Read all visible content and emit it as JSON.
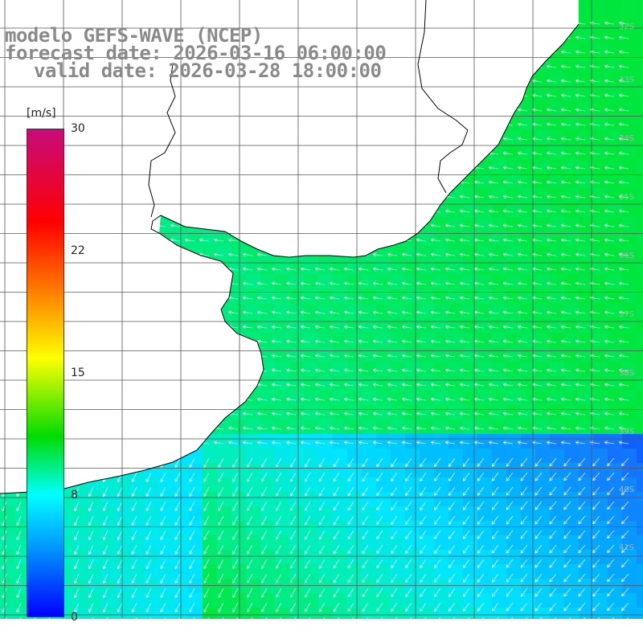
{
  "title": {
    "line1": "modelo GEFS-WAVE (NCEP)",
    "line2": "forecast date: 2026-03-16 06:00:00",
    "line3": "valid date: 2026-03-28 18:00:00"
  },
  "colorbar": {
    "unit": "[m/s]",
    "tick_labels": [
      "30",
      "22",
      "15",
      "8",
      "0"
    ],
    "min": 0,
    "max": 30,
    "stops": [
      "#c70b7c",
      "#ff0000",
      "#ff7b00",
      "#ffff00",
      "#00dc00",
      "#00ffff",
      "#0096ff",
      "#0000ff"
    ]
  },
  "latitude_labels": [
    "32S",
    "33S",
    "34S",
    "35S",
    "36S",
    "37S",
    "38S",
    "39S",
    "40S",
    "41S"
  ],
  "colors": {
    "land": "#ffffff",
    "grid": "#555555",
    "coast": "#000000",
    "arrows": "#ffffff"
  }
}
